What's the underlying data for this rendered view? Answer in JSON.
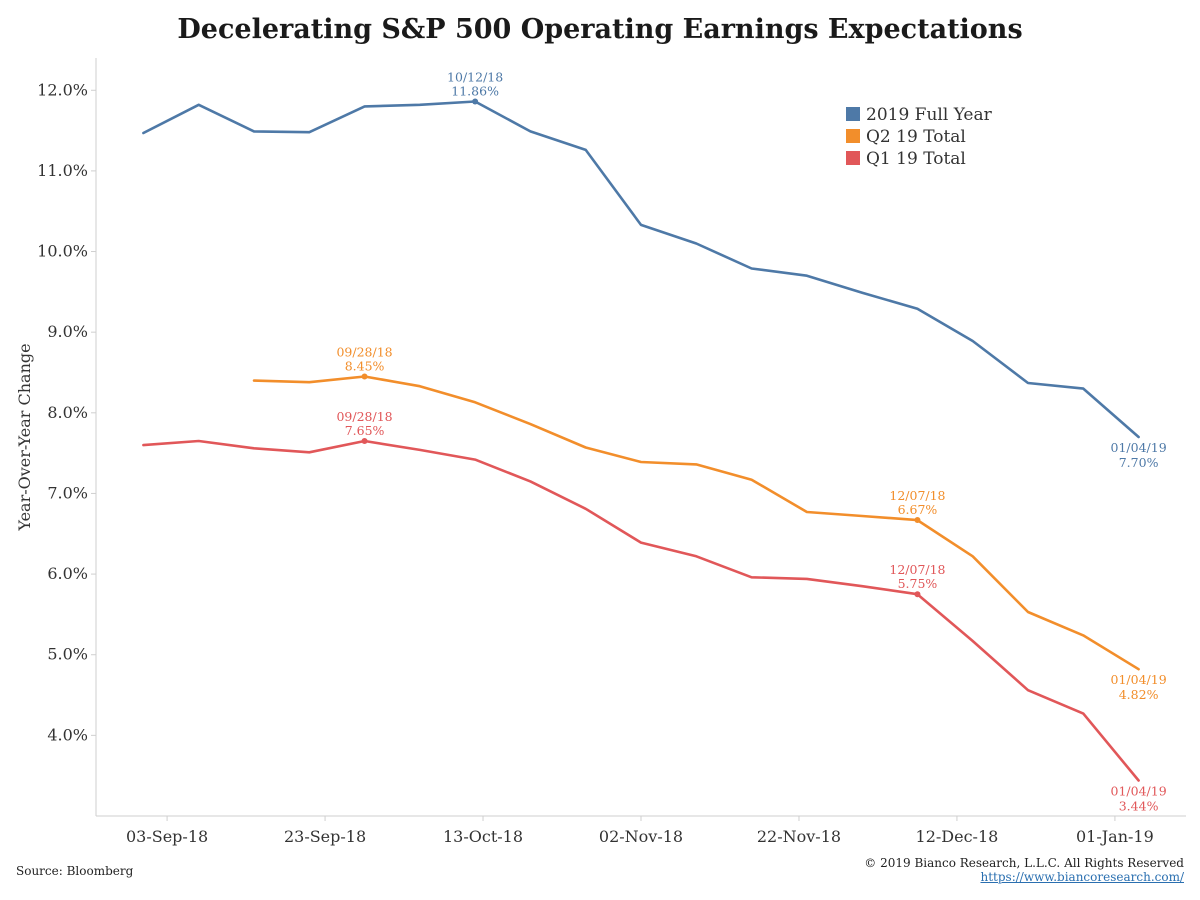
{
  "chart_data": {
    "type": "line",
    "title": "Decelerating S&P 500 Operating Earnings Expectations",
    "ylabel": "Year-Over-Year Change",
    "xlabel": "",
    "ylim": [
      3.0,
      12.4
    ],
    "yticks": [
      "4.0%",
      "5.0%",
      "6.0%",
      "7.0%",
      "8.0%",
      "9.0%",
      "10.0%",
      "11.0%",
      "12.0%"
    ],
    "ytick_values": [
      4.0,
      5.0,
      6.0,
      7.0,
      8.0,
      9.0,
      10.0,
      11.0,
      12.0
    ],
    "xticks": [
      "03-Sep-18",
      "23-Sep-18",
      "13-Oct-18",
      "02-Nov-18",
      "22-Nov-18",
      "12-Dec-18",
      "01-Jan-19"
    ],
    "xtick_dates": [
      "2018-09-03",
      "2018-09-23",
      "2018-10-13",
      "2018-11-02",
      "2018-11-22",
      "2018-12-12",
      "2019-01-01"
    ],
    "xlim": [
      "2018-08-25",
      "2019-01-10"
    ],
    "grid": false,
    "legend_position": "top-right",
    "series": [
      {
        "name": "2019 Full Year",
        "color": "#4e79a7",
        "points": [
          [
            "2018-08-31",
            11.47
          ],
          [
            "2018-09-07",
            11.82
          ],
          [
            "2018-09-14",
            11.49
          ],
          [
            "2018-09-21",
            11.48
          ],
          [
            "2018-09-28",
            11.8
          ],
          [
            "2018-10-05",
            11.82
          ],
          [
            "2018-10-12",
            11.86
          ],
          [
            "2018-10-19",
            11.49
          ],
          [
            "2018-10-26",
            11.26
          ],
          [
            "2018-11-02",
            10.33
          ],
          [
            "2018-11-09",
            10.1
          ],
          [
            "2018-11-16",
            9.79
          ],
          [
            "2018-11-23",
            9.7
          ],
          [
            "2018-11-30",
            9.49
          ],
          [
            "2018-12-07",
            9.29
          ],
          [
            "2018-12-14",
            8.89
          ],
          [
            "2018-12-21",
            8.37
          ],
          [
            "2018-12-28",
            8.3
          ],
          [
            "2019-01-04",
            7.7
          ]
        ]
      },
      {
        "name": "Q2 19 Total",
        "color": "#f28e2b",
        "points": [
          [
            "2018-09-14",
            8.4
          ],
          [
            "2018-09-21",
            8.38
          ],
          [
            "2018-09-28",
            8.45
          ],
          [
            "2018-10-05",
            8.33
          ],
          [
            "2018-10-12",
            8.13
          ],
          [
            "2018-10-19",
            7.86
          ],
          [
            "2018-10-26",
            7.57
          ],
          [
            "2018-11-02",
            7.39
          ],
          [
            "2018-11-09",
            7.36
          ],
          [
            "2018-11-16",
            7.17
          ],
          [
            "2018-11-23",
            6.77
          ],
          [
            "2018-11-30",
            6.72
          ],
          [
            "2018-12-07",
            6.67
          ],
          [
            "2018-12-14",
            6.22
          ],
          [
            "2018-12-21",
            5.53
          ],
          [
            "2018-12-28",
            5.24
          ],
          [
            "2019-01-04",
            4.82
          ]
        ]
      },
      {
        "name": "Q1 19 Total",
        "color": "#e15759",
        "points": [
          [
            "2018-08-31",
            7.6
          ],
          [
            "2018-09-07",
            7.65
          ],
          [
            "2018-09-14",
            7.56
          ],
          [
            "2018-09-21",
            7.51
          ],
          [
            "2018-09-28",
            7.65
          ],
          [
            "2018-10-05",
            7.54
          ],
          [
            "2018-10-12",
            7.42
          ],
          [
            "2018-10-19",
            7.15
          ],
          [
            "2018-10-26",
            6.81
          ],
          [
            "2018-11-02",
            6.39
          ],
          [
            "2018-11-09",
            6.22
          ],
          [
            "2018-11-16",
            5.96
          ],
          [
            "2018-11-23",
            5.94
          ],
          [
            "2018-11-30",
            5.85
          ],
          [
            "2018-12-07",
            5.75
          ],
          [
            "2018-12-14",
            5.17
          ],
          [
            "2018-12-21",
            4.56
          ],
          [
            "2018-12-28",
            4.27
          ],
          [
            "2019-01-04",
            3.44
          ]
        ]
      }
    ],
    "annotations": [
      {
        "series": 0,
        "date": "2018-10-12",
        "value": 11.86,
        "date_label": "10/12/18",
        "value_label": "11.86%",
        "marker": true,
        "side": "above"
      },
      {
        "series": 0,
        "date": "2019-01-04",
        "value": 7.7,
        "date_label": "01/04/19",
        "value_label": "7.70%",
        "marker": false,
        "side": "below"
      },
      {
        "series": 1,
        "date": "2018-09-28",
        "value": 8.45,
        "date_label": "09/28/18",
        "value_label": "8.45%",
        "marker": true,
        "side": "above"
      },
      {
        "series": 1,
        "date": "2018-12-07",
        "value": 6.67,
        "date_label": "12/07/18",
        "value_label": "6.67%",
        "marker": true,
        "side": "above"
      },
      {
        "series": 1,
        "date": "2019-01-04",
        "value": 4.82,
        "date_label": "01/04/19",
        "value_label": "4.82%",
        "marker": false,
        "side": "below"
      },
      {
        "series": 2,
        "date": "2018-09-28",
        "value": 7.65,
        "date_label": "09/28/18",
        "value_label": "7.65%",
        "marker": true,
        "side": "above"
      },
      {
        "series": 2,
        "date": "2018-12-07",
        "value": 5.75,
        "date_label": "12/07/18",
        "value_label": "5.75%",
        "marker": true,
        "side": "above"
      },
      {
        "series": 2,
        "date": "2019-01-04",
        "value": 3.44,
        "date_label": "01/04/19",
        "value_label": "3.44%",
        "marker": false,
        "side": "below"
      }
    ]
  },
  "footer": {
    "source": "Source: Bloomberg",
    "copyright": "© 2019 Bianco Research, L.L.C. All Rights Reserved",
    "link": "https://www.biancoresearch.com/"
  }
}
